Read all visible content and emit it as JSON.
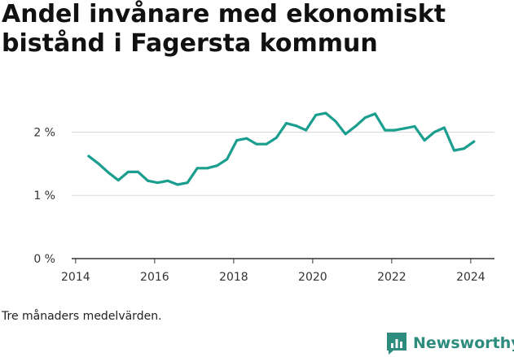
{
  "title": "Andel invånare med ekonomiskt bistånd i Fagersta kommun",
  "footnote": "Tre månaders medelvärden.",
  "brand": {
    "name": "Newsworthy",
    "icon": "newsworthy-logo-icon",
    "color": "#2e8c7e"
  },
  "chart_data": {
    "type": "line",
    "title": "Andel invånare med ekonomiskt bistånd i Fagersta kommun",
    "xlabel": "",
    "ylabel": "",
    "xlim": [
      2013.9,
      2024.6
    ],
    "ylim": [
      0,
      2.7
    ],
    "x_ticks": [
      2014,
      2016,
      2018,
      2020,
      2022,
      2024
    ],
    "x_tick_labels": [
      "2014",
      "2016",
      "2018",
      "2020",
      "2022",
      "2024"
    ],
    "y_ticks": [
      0,
      1,
      2
    ],
    "y_tick_labels": [
      "0 %",
      "1 %",
      "2 %"
    ],
    "grid": "horizontal",
    "legend": "none",
    "color": "#1a9e8f",
    "series": [
      {
        "x": [
          2014.33,
          2014.58,
          2014.83,
          2015.08,
          2015.33,
          2015.58,
          2015.83,
          2016.08,
          2016.33,
          2016.58,
          2016.83,
          2017.08,
          2017.33,
          2017.58,
          2017.83,
          2018.08,
          2018.33,
          2018.58,
          2018.83,
          2019.08,
          2019.33,
          2019.58,
          2019.83,
          2020.08,
          2020.33,
          2020.58,
          2020.83,
          2021.08,
          2021.33,
          2021.58,
          2021.83,
          2022.08,
          2022.33,
          2022.58,
          2022.83,
          2023.08,
          2023.33,
          2023.58,
          2023.83,
          2024.08
        ],
        "y": [
          1.62,
          1.5,
          1.36,
          1.24,
          1.37,
          1.37,
          1.23,
          1.2,
          1.23,
          1.17,
          1.2,
          1.43,
          1.43,
          1.47,
          1.57,
          1.87,
          1.9,
          1.81,
          1.81,
          1.91,
          2.14,
          2.1,
          2.03,
          2.27,
          2.3,
          2.17,
          1.97,
          2.09,
          2.23,
          2.29,
          2.03,
          2.03,
          2.06,
          2.09,
          1.87,
          2.0,
          2.07,
          1.71,
          1.74,
          1.85
        ]
      }
    ]
  }
}
